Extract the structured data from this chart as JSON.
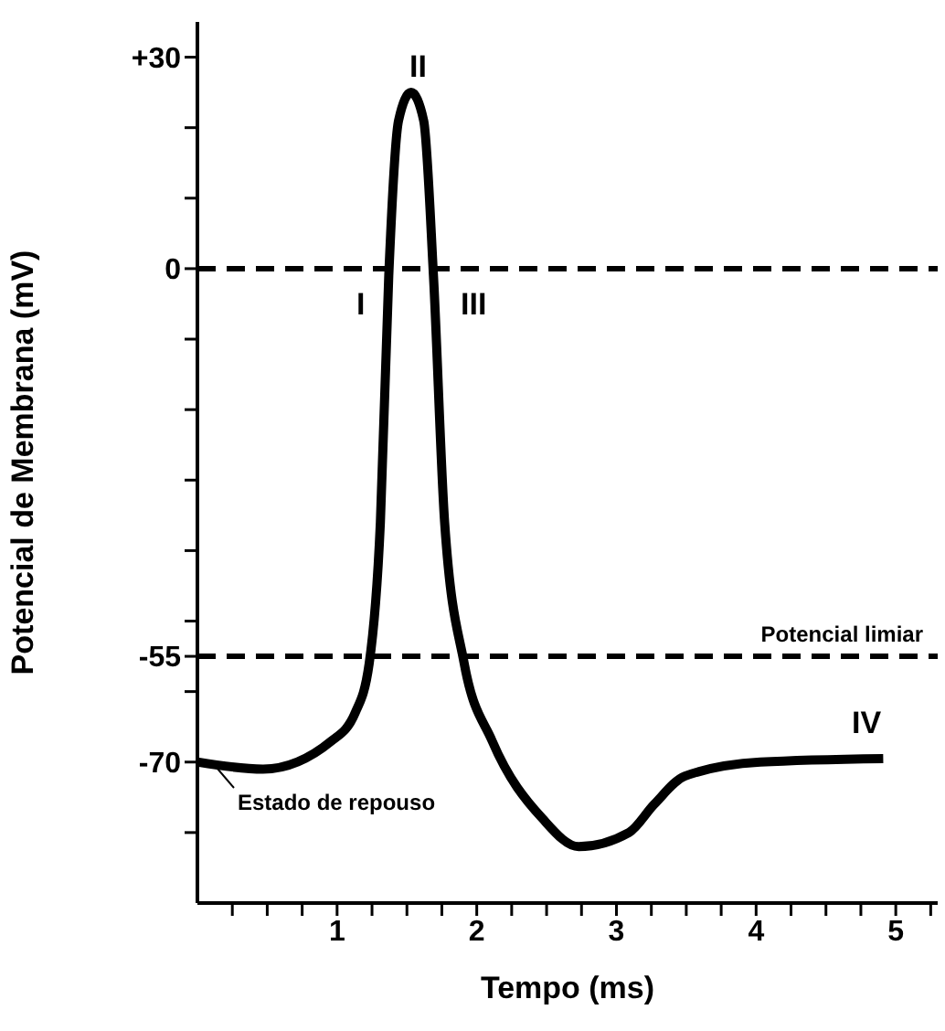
{
  "chart_data": {
    "type": "line",
    "xlabel": "Tempo (ms)",
    "ylabel": "Potencial de Membrana (mV)",
    "x": [
      0,
      0.47,
      0.96,
      1.13,
      1.23,
      1.31,
      1.37,
      1.44,
      1.53,
      1.62,
      1.69,
      1.77,
      1.91,
      2.11,
      2.47,
      2.73,
      3.09,
      3.27,
      3.49,
      4.03,
      4.91
    ],
    "series": [
      {
        "color": "#000000",
        "values": [
          -70,
          -71,
          -67,
          -63,
          -56,
          -36,
          -1,
          21,
          25,
          21,
          -1,
          -36,
          -56,
          -67,
          -78,
          -82,
          -80,
          -76,
          -72,
          -70,
          -69.5
        ]
      }
    ],
    "xlim": [
      0,
      5.3
    ],
    "xticks": [
      {
        "value": 0.25,
        "label": null
      },
      {
        "value": 0.5,
        "label": null
      },
      {
        "value": 0.75,
        "label": null
      },
      1,
      {
        "value": 1.25,
        "label": null
      },
      {
        "value": 1.5,
        "label": null
      },
      {
        "value": 1.75,
        "label": null
      },
      2,
      {
        "value": 2.25,
        "label": null
      },
      {
        "value": 2.5,
        "label": null
      },
      {
        "value": 2.75,
        "label": null
      },
      3,
      {
        "value": 3.25,
        "label": null
      },
      {
        "value": 3.5,
        "label": null
      },
      {
        "value": 3.75,
        "label": null
      },
      4,
      {
        "value": 4.25,
        "label": null
      },
      {
        "value": 4.5,
        "label": null
      },
      {
        "value": 4.75,
        "label": null
      },
      5,
      {
        "value": 5.25,
        "label": null
      }
    ],
    "ylim": [
      -90,
      35
    ],
    "yticks": [
      {
        "value": 30,
        "label": "+30"
      },
      {
        "value": 20,
        "label": null
      },
      {
        "value": 10,
        "label": null
      },
      0,
      {
        "value": -10,
        "label": null
      },
      {
        "value": -20,
        "label": null
      },
      {
        "value": -30,
        "label": null
      },
      {
        "value": -40,
        "label": null
      },
      {
        "value": -50,
        "label": null
      },
      -55,
      {
        "value": -60,
        "label": null
      },
      -70,
      {
        "value": -80,
        "label": null
      }
    ],
    "ref_lines": [
      {
        "axis": "y",
        "value": 0,
        "line_style": "dashed",
        "color": "#000000"
      },
      {
        "axis": "y",
        "value": -55,
        "label": "Potencial limiar",
        "line_style": "dashed",
        "color": "#000000"
      }
    ],
    "annotations": [
      "II",
      "I",
      "III",
      "IV",
      "Estado de repouso"
    ],
    "grid": false,
    "marker": "none",
    "line_style": "solid"
  }
}
